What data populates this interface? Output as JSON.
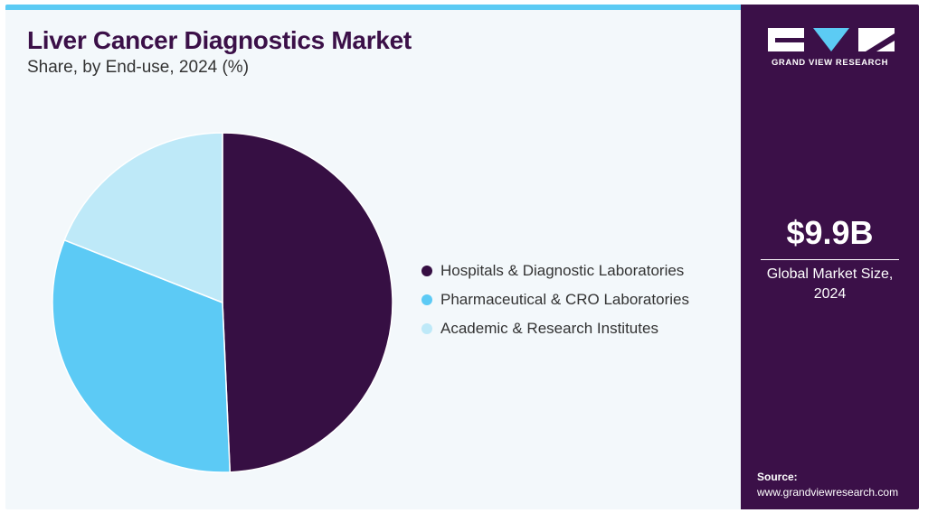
{
  "header": {
    "title": "Liver Cancer Diagnostics Market",
    "subtitle": "Share, by End-use, 2024 (%)"
  },
  "colors": {
    "accent_bar": "#5ccbf4",
    "sidebar_bg": "#3b1048",
    "title_color": "#3b1048"
  },
  "chart_data": {
    "type": "pie",
    "categories": [
      "Hospitals & Diagnostic Laboratories",
      "Pharmaceutical & CRO Laboratories",
      "Academic & Research Institutes"
    ],
    "values": [
      49.3,
      31.7,
      19.0
    ],
    "colors": [
      "#360f43",
      "#5ccaf5",
      "#bee9f8"
    ],
    "legend_position": "right",
    "title": "Liver Cancer Diagnostics Market",
    "subtitle": "Share, by End-use, 2024 (%)"
  },
  "sidebar": {
    "logo_icon": "grand-view-research-logo",
    "logo_text": "GRAND VIEW RESEARCH",
    "market_size": "$9.9B",
    "market_size_label": "Global Market Size, 2024",
    "source_label": "Source:",
    "source_url": "www.grandviewresearch.com"
  }
}
